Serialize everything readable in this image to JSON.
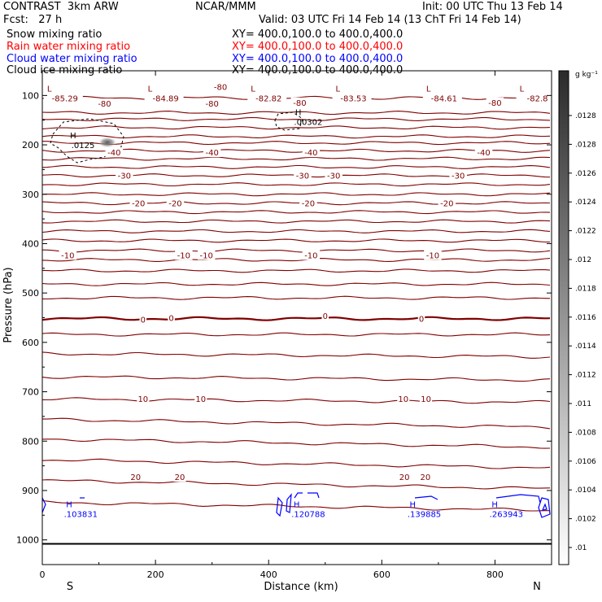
{
  "header": {
    "model": "CONTRAST  3km ARW",
    "org": "NCAR/MMM",
    "init": "Init: 00 UTC Thu 13 Feb 14",
    "fcst": "Fcst:   27 h",
    "valid": "Valid: 03 UTC Fri 14 Feb 14 (13 ChT Fri 14 Feb 14)",
    "fields": [
      {
        "name": "Snow mixing ratio",
        "xy": "XY= 400.0,100.0 to 400.0,400.0",
        "color": "#000000"
      },
      {
        "name": "Rain water mixing ratio",
        "xy": "XY= 400.0,100.0 to 400.0,400.0",
        "color": "#ff0000"
      },
      {
        "name": "Cloud water mixing ratio",
        "xy": "XY= 400.0,100.0 to 400.0,400.0",
        "color": "#0000ff"
      },
      {
        "name": "Cloud ice mixing ratio",
        "xy": "XY= 400.0,100.0 to 400.0,400.0",
        "color": "#000000"
      }
    ]
  },
  "chart_data": {
    "type": "contour",
    "xlabel": "Distance (km)",
    "ylabel": "Pressure (hPa)",
    "xlim": [
      0,
      900
    ],
    "ylim": [
      1050,
      50
    ],
    "xticks": [
      0,
      200,
      400,
      600,
      800
    ],
    "yticks": [
      100,
      200,
      300,
      400,
      500,
      600,
      700,
      800,
      900,
      1000
    ],
    "x_end_labels": {
      "left": "S",
      "right": "N"
    },
    "temperature_contours": {
      "units": "C",
      "color": "#800000",
      "isotherm_pressures_hPa": [
        105,
        135,
        148,
        165,
        183,
        196,
        212,
        228,
        245,
        262,
        280,
        300,
        318,
        336,
        355,
        375,
        394,
        414,
        433,
        455,
        482,
        510,
        552,
        584,
        626,
        673,
        718,
        764,
        804,
        846,
        888,
        932
      ],
      "labels": [
        {
          "text": "-80",
          "x": 315,
          "p": 82
        },
        {
          "text": "-80",
          "x": 110,
          "p": 116
        },
        {
          "text": "-80",
          "x": 300,
          "p": 116
        },
        {
          "text": "-80",
          "x": 455,
          "p": 114
        },
        {
          "text": "-80",
          "x": 800,
          "p": 114
        },
        {
          "text": "-40",
          "x": 127,
          "p": 215
        },
        {
          "text": "-40",
          "x": 300,
          "p": 215
        },
        {
          "text": "-40",
          "x": 475,
          "p": 215
        },
        {
          "text": "-40",
          "x": 780,
          "p": 215
        },
        {
          "text": "-30",
          "x": 145,
          "p": 262
        },
        {
          "text": "-30",
          "x": 460,
          "p": 262
        },
        {
          "text": "-30",
          "x": 515,
          "p": 262
        },
        {
          "text": "-30",
          "x": 735,
          "p": 262
        },
        {
          "text": "-20",
          "x": 170,
          "p": 318
        },
        {
          "text": "-20",
          "x": 235,
          "p": 318
        },
        {
          "text": "-20",
          "x": 470,
          "p": 318
        },
        {
          "text": "-20",
          "x": 715,
          "p": 318
        },
        {
          "text": "-10",
          "x": 45,
          "p": 423
        },
        {
          "text": "-10",
          "x": 250,
          "p": 423
        },
        {
          "text": "-10",
          "x": 290,
          "p": 423
        },
        {
          "text": "-10",
          "x": 475,
          "p": 423
        },
        {
          "text": "-10",
          "x": 690,
          "p": 423
        },
        {
          "text": "0",
          "x": 178,
          "p": 553
        },
        {
          "text": "0",
          "x": 228,
          "p": 550
        },
        {
          "text": "0",
          "x": 500,
          "p": 546
        },
        {
          "text": "0",
          "x": 670,
          "p": 552
        },
        {
          "text": "10",
          "x": 178,
          "p": 714
        },
        {
          "text": "10",
          "x": 280,
          "p": 714
        },
        {
          "text": "10",
          "x": 638,
          "p": 714
        },
        {
          "text": "10",
          "x": 678,
          "p": 714
        },
        {
          "text": "20",
          "x": 165,
          "p": 872
        },
        {
          "text": "20",
          "x": 243,
          "p": 872
        },
        {
          "text": "20",
          "x": 640,
          "p": 872
        },
        {
          "text": "20",
          "x": 677,
          "p": 872
        }
      ],
      "lows": [
        {
          "value": "-85.29",
          "x": 40,
          "p": 102
        },
        {
          "value": "-84.89",
          "x": 218,
          "p": 102
        },
        {
          "value": "-82.82",
          "x": 400,
          "p": 102
        },
        {
          "value": "-83.53",
          "x": 550,
          "p": 102
        },
        {
          "value": "-84.61",
          "x": 710,
          "p": 102
        },
        {
          "value": "-82.8",
          "x": 875,
          "p": 102
        }
      ]
    },
    "snow_highs": [
      {
        "value": ".0125",
        "x": 72,
        "p": 203
      },
      {
        "value": ".00302",
        "x": 470,
        "p": 156
      }
    ],
    "cloud_water_highs": [
      {
        "value": ".103831",
        "x": 68,
        "p": 950
      },
      {
        "value": ".120788",
        "x": 470,
        "p": 950
      },
      {
        "value": ".139885",
        "x": 675,
        "p": 950
      },
      {
        "value": ".263943",
        "x": 820,
        "p": 950
      }
    ],
    "colorbar": {
      "unit": "g kg⁻¹",
      "labels": [
        ".0128",
        ".0128",
        ".0126",
        ".0124",
        ".0122",
        ".012",
        ".0118",
        ".0116",
        ".0114",
        ".0112",
        ".011",
        ".0108",
        ".0106",
        ".0104",
        ".0102",
        ".01"
      ]
    }
  }
}
